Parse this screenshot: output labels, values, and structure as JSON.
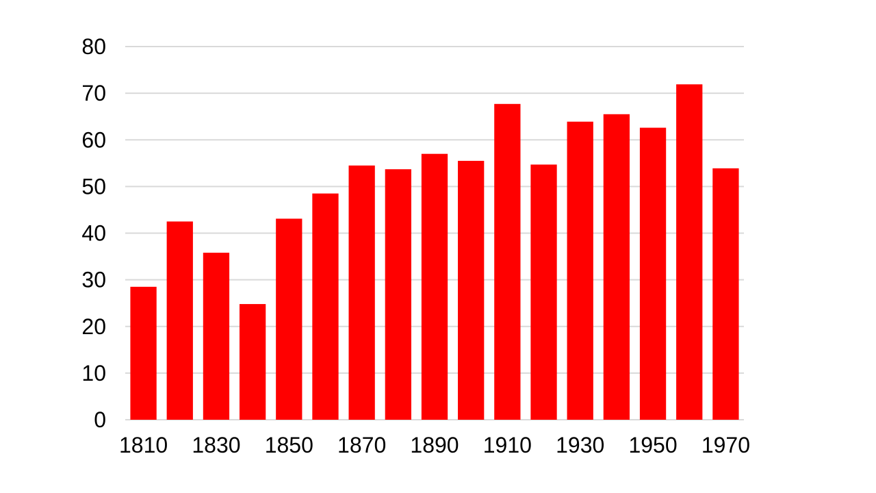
{
  "chart_data": {
    "type": "bar",
    "title": "",
    "xlabel": "",
    "ylabel": "",
    "categories": [
      "1810",
      "1820",
      "1830",
      "1840",
      "1850",
      "1860",
      "1870",
      "1880",
      "1890",
      "1900",
      "1910",
      "1920",
      "1930",
      "1940",
      "1950",
      "1960",
      "1970"
    ],
    "x_tick_labels": [
      "1810",
      "",
      "1830",
      "",
      "1850",
      "",
      "1870",
      "",
      "1890",
      "",
      "1910",
      "",
      "1930",
      "",
      "1950",
      "",
      "1970"
    ],
    "values": [
      28.5,
      42.5,
      35.8,
      24.8,
      43.1,
      48.5,
      54.5,
      53.7,
      57.0,
      55.5,
      67.7,
      54.7,
      63.9,
      65.5,
      62.6,
      71.9,
      53.9
    ],
    "ylim": [
      0,
      80
    ],
    "yticks": [
      0,
      10,
      20,
      30,
      40,
      50,
      60,
      70,
      80
    ],
    "grid": true,
    "legend": "none",
    "bar_color": "#ff0000",
    "grid_color": "#d9d9d9"
  }
}
